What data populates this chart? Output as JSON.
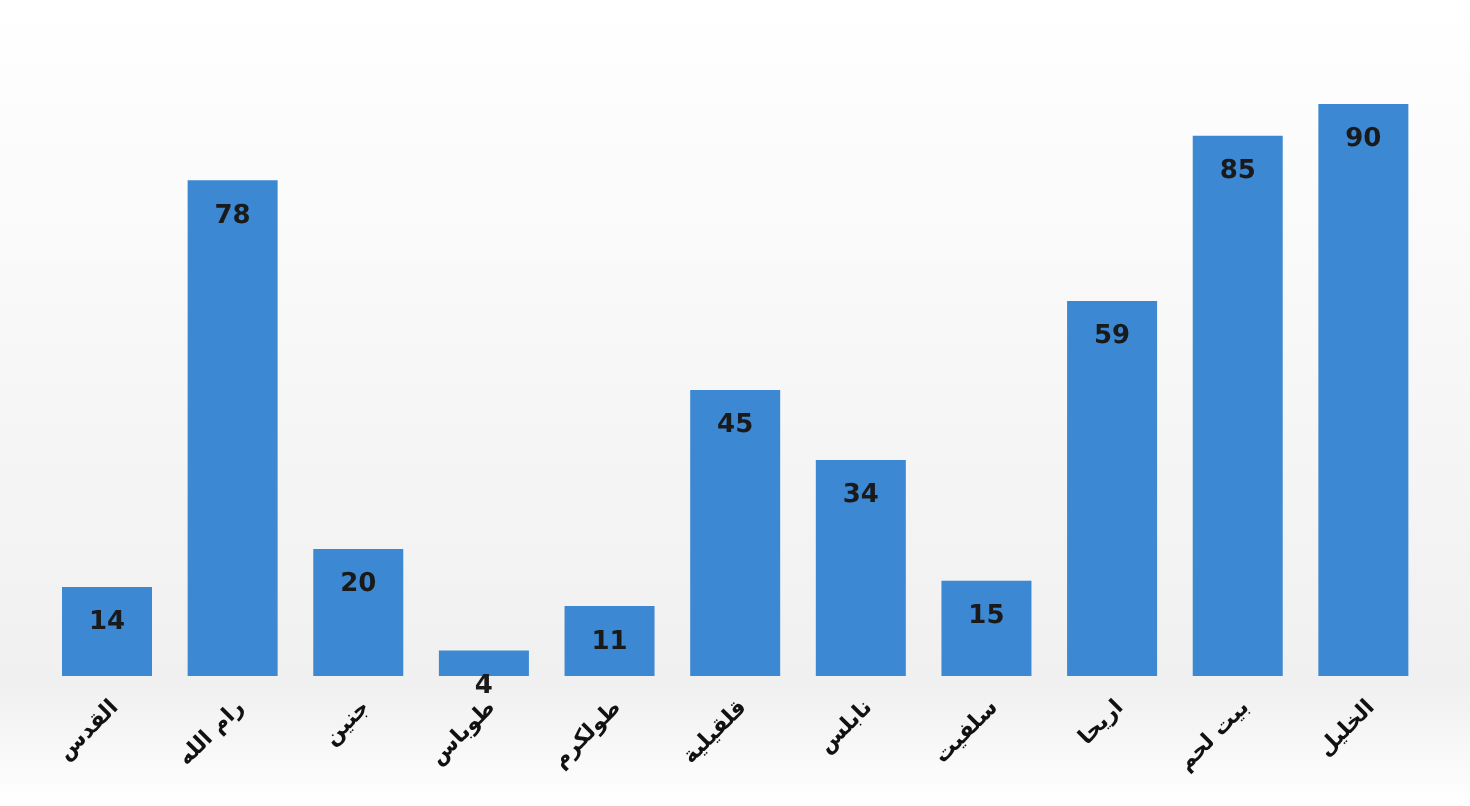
{
  "chart_data": {
    "type": "bar",
    "categories": [
      "القدس",
      "رام الله",
      "جنين",
      "طوباس",
      "طولكرم",
      "قلقيلية",
      "نابلس",
      "سلفيت",
      "اريحا",
      "بيت لحم",
      "الخليل"
    ],
    "values": [
      14,
      78,
      20,
      4,
      11,
      45,
      34,
      15,
      59,
      85,
      90
    ],
    "color": "#3d88d2",
    "data_labels": true,
    "tick_labels": "x"
  }
}
